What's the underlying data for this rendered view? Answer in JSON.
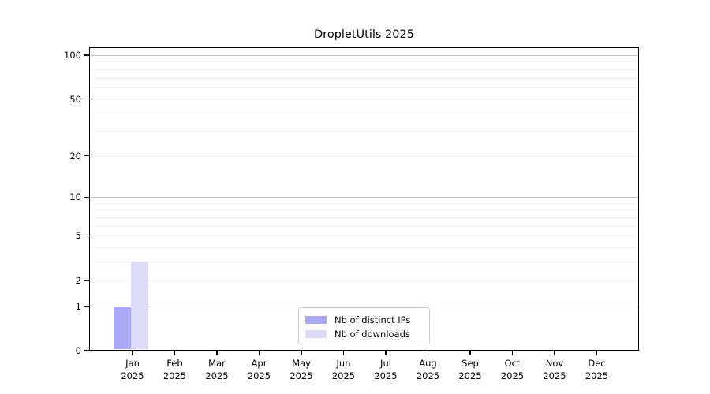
{
  "chart_data": {
    "type": "bar",
    "title": "DropletUtils 2025",
    "categories": [
      "Jan",
      "Feb",
      "Mar",
      "Apr",
      "May",
      "Jun",
      "Jul",
      "Aug",
      "Sep",
      "Oct",
      "Nov",
      "Dec"
    ],
    "year": "2025",
    "series": [
      {
        "name": "Nb of distinct IPs",
        "color": "#a9a9f7",
        "values": [
          1,
          0,
          0,
          0,
          0,
          0,
          0,
          0,
          0,
          0,
          0,
          0
        ]
      },
      {
        "name": "Nb of downloads",
        "color": "#dcdcf8",
        "values": [
          3,
          0,
          0,
          0,
          0,
          0,
          0,
          0,
          0,
          0,
          0,
          0
        ]
      }
    ],
    "y_axis": {
      "scale": "log1p",
      "labeled_ticks": [
        0,
        1,
        2,
        5,
        10,
        20,
        50,
        100
      ],
      "major_gridlines": [
        1,
        10,
        100
      ],
      "minor_gridlines": [
        2,
        3,
        4,
        5,
        6,
        7,
        8,
        9,
        20,
        30,
        40,
        50,
        60,
        70,
        80,
        90
      ],
      "range_max": 100
    },
    "legend_position": "inside-bottom-center",
    "grid": true
  },
  "colors": {
    "grid_major": "#c3c3c3",
    "grid_minor": "#efefef",
    "axis": "#000000",
    "legend_border": "#cccccc"
  }
}
